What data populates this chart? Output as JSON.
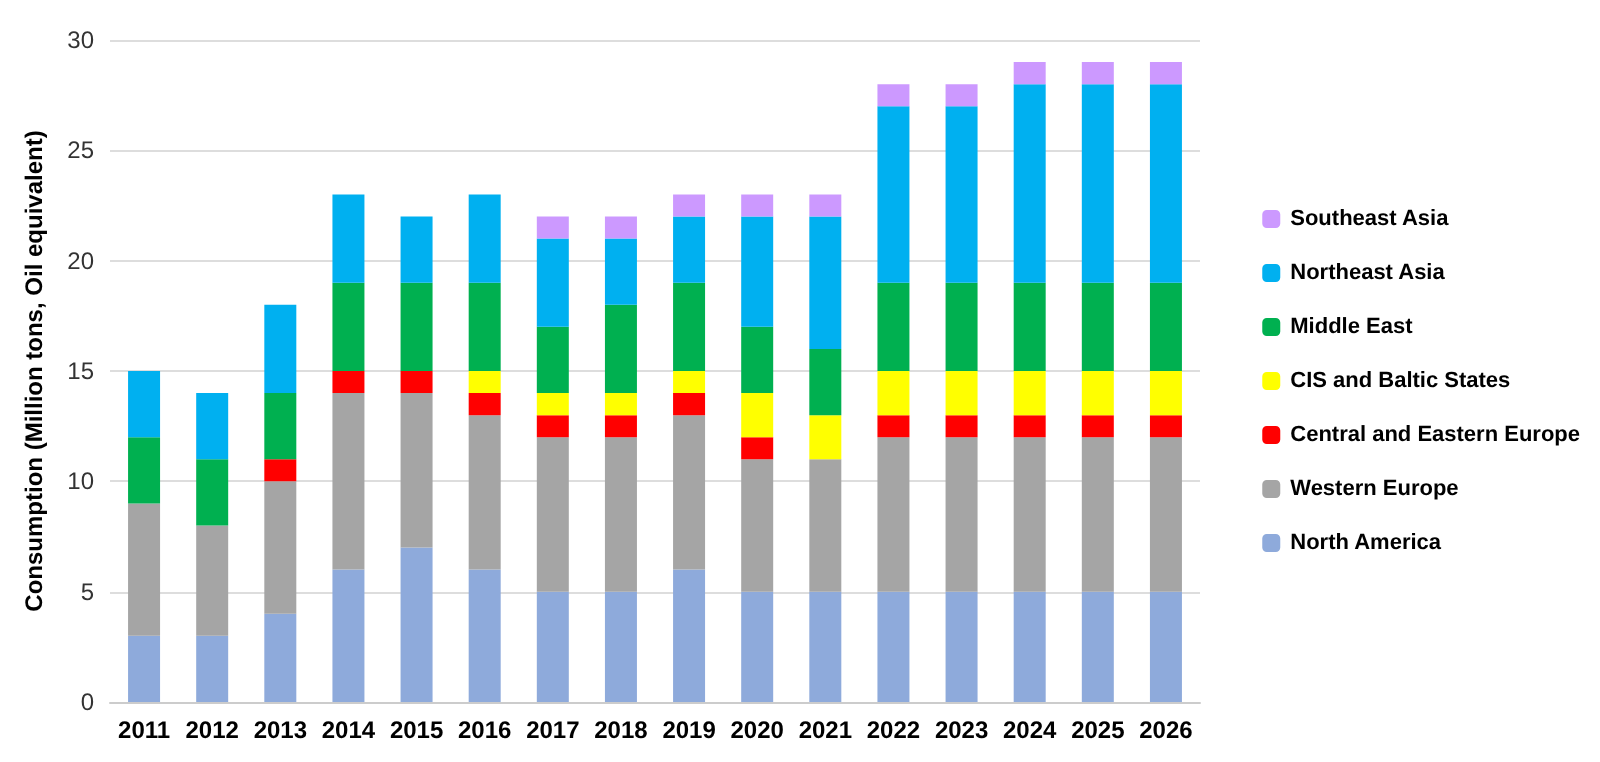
{
  "chart_data": {
    "type": "bar",
    "stacked": true,
    "ylabel": "Consumption (Million tons, Oil equivalent)",
    "categories": [
      "2011",
      "2012",
      "2013",
      "2014",
      "2015",
      "2016",
      "2017",
      "2018",
      "2019",
      "2020",
      "2021",
      "2022",
      "2023",
      "2024",
      "2025",
      "2026"
    ],
    "series": [
      {
        "name": "North America",
        "color": "#8eaadb",
        "values": [
          3,
          3,
          4,
          6,
          7,
          6,
          5,
          5,
          6,
          5,
          5,
          5,
          5,
          5,
          5,
          5
        ]
      },
      {
        "name": "Western Europe",
        "color": "#a5a5a5",
        "values": [
          6,
          5,
          6,
          8,
          7,
          7,
          7,
          7,
          7,
          6,
          6,
          7,
          7,
          7,
          7,
          7
        ]
      },
      {
        "name": "Central and Eastern Europe",
        "color": "#ff0000",
        "values": [
          0,
          0,
          1,
          1,
          1,
          1,
          1,
          1,
          1,
          1,
          0,
          1,
          1,
          1,
          1,
          1
        ]
      },
      {
        "name": "CIS and Baltic States",
        "color": "#ffff00",
        "values": [
          0,
          0,
          0,
          0,
          0,
          1,
          1,
          1,
          1,
          2,
          2,
          2,
          2,
          2,
          2,
          2
        ]
      },
      {
        "name": "Middle East",
        "color": "#00b050",
        "values": [
          3,
          3,
          3,
          4,
          4,
          4,
          3,
          4,
          4,
          3,
          3,
          4,
          4,
          4,
          4,
          4
        ]
      },
      {
        "name": "Northeast Asia",
        "color": "#00b0f0",
        "values": [
          3,
          3,
          4,
          4,
          3,
          4,
          4,
          3,
          3,
          5,
          6,
          8,
          8,
          9,
          9,
          9
        ]
      },
      {
        "name": "Southeast Asia",
        "color": "#cc99ff",
        "values": [
          0,
          0,
          0,
          0,
          0,
          0,
          1,
          1,
          1,
          1,
          1,
          1,
          1,
          1,
          1,
          1
        ]
      }
    ],
    "ylim": [
      0,
      30
    ],
    "yticks": [
      0,
      5,
      10,
      15,
      20,
      25,
      30
    ],
    "grid": "y",
    "legend": "right"
  }
}
